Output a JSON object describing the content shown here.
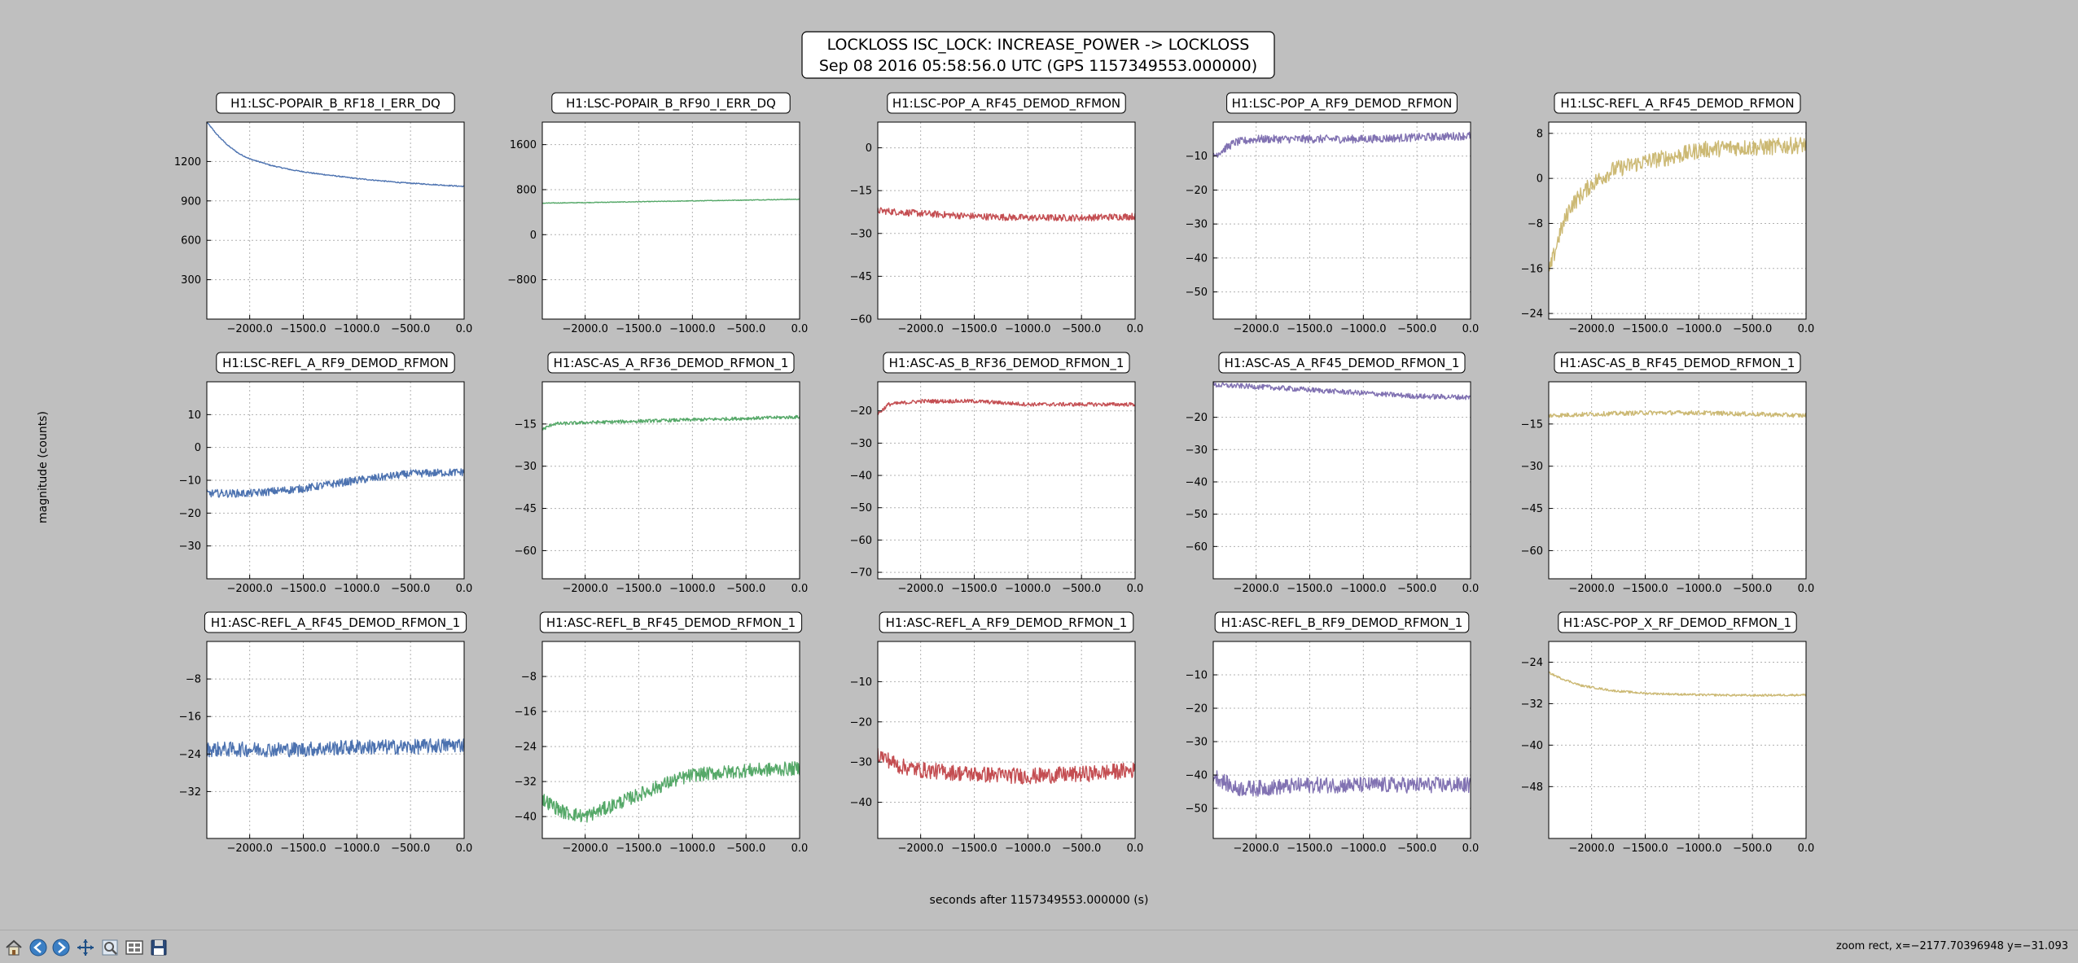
{
  "figure": {
    "title_line1": "LOCKLOSS ISC_LOCK: INCREASE_POWER -> LOCKLOSS",
    "title_line2": "Sep 08 2016 05:58:56.0 UTC (GPS 1157349553.000000)",
    "xlabel": "seconds after 1157349553.000000 (s)",
    "ylabel": "magnitude (counts)"
  },
  "toolbar": {
    "buttons": [
      {
        "name": "home-button",
        "icon": "home-icon"
      },
      {
        "name": "back-button",
        "icon": "back-arrow-icon"
      },
      {
        "name": "forward-button",
        "icon": "forward-arrow-icon"
      },
      {
        "name": "pan-button",
        "icon": "pan-icon"
      },
      {
        "name": "zoom-button",
        "icon": "zoom-icon"
      },
      {
        "name": "configure-subplots-button",
        "icon": "subplots-icon"
      },
      {
        "name": "save-button",
        "icon": "save-icon"
      }
    ],
    "status": "zoom rect, x=−2177.70396948 y=−31.093"
  },
  "colors": {
    "blue": "#4c72b0",
    "green": "#55a868",
    "red": "#c44e52",
    "purple": "#8172b2",
    "gold": "#ccb974",
    "background": "#bfbfbf"
  },
  "chart_data": [
    {
      "type": "line",
      "title": "H1:LSC-POPAIR_B_RF18_I_ERR_DQ",
      "color": "#4c72b0",
      "xlim": [
        -2400,
        0
      ],
      "ylim": [
        0,
        1500
      ],
      "xticks": [
        -2000,
        -1500,
        -1000,
        -500,
        0
      ],
      "xtick_labels": [
        "−2000.0",
        "−1500.0",
        "−1000.0",
        "−500.0",
        "0.0"
      ],
      "yticks": [
        300,
        600,
        900,
        1200
      ],
      "ytick_labels": [
        "300",
        "600",
        "900",
        "1200"
      ],
      "grid": true,
      "x": [
        -2400,
        -2300,
        -2200,
        -2100,
        -2000,
        -1800,
        -1600,
        -1400,
        -1200,
        -1000,
        -800,
        -600,
        -400,
        -200,
        0
      ],
      "y": [
        1500,
        1400,
        1320,
        1260,
        1220,
        1170,
        1135,
        1110,
        1090,
        1070,
        1055,
        1040,
        1030,
        1020,
        1010
      ],
      "noise": 4
    },
    {
      "type": "line",
      "title": "H1:LSC-POPAIR_B_RF90_I_ERR_DQ",
      "color": "#55a868",
      "xlim": [
        -2400,
        0
      ],
      "ylim": [
        -1500,
        2000
      ],
      "xticks": [
        -2000,
        -1500,
        -1000,
        -500,
        0
      ],
      "xtick_labels": [
        "−2000.0",
        "−1500.0",
        "−1000.0",
        "−500.0",
        "0.0"
      ],
      "yticks": [
        -800,
        0,
        800,
        1600
      ],
      "ytick_labels": [
        "−800",
        "0",
        "800",
        "1600"
      ],
      "grid": true,
      "x": [
        -2400,
        -2000,
        -1500,
        -1000,
        -500,
        0
      ],
      "y": [
        560,
        570,
        585,
        600,
        615,
        630
      ],
      "noise": 6
    },
    {
      "type": "line",
      "title": "H1:LSC-POP_A_RF45_DEMOD_RFMON",
      "color": "#c44e52",
      "xlim": [
        -2400,
        0
      ],
      "ylim": [
        -60,
        9
      ],
      "xticks": [
        -2000,
        -1500,
        -1000,
        -500,
        0
      ],
      "xtick_labels": [
        "−2000.0",
        "−1500.0",
        "−1000.0",
        "−500.0",
        "0.0"
      ],
      "yticks": [
        -60,
        -45,
        -30,
        -15,
        0
      ],
      "ytick_labels": [
        "−60",
        "−45",
        "−30",
        "−15",
        "0"
      ],
      "grid": true,
      "x": [
        -2400,
        -2000,
        -1500,
        -1000,
        -500,
        0
      ],
      "y": [
        -22,
        -23,
        -24,
        -24.5,
        -24.5,
        -24
      ],
      "noise": 1.2
    },
    {
      "type": "line",
      "title": "H1:LSC-POP_A_RF9_DEMOD_RFMON",
      "color": "#8172b2",
      "xlim": [
        -2400,
        0
      ],
      "ylim": [
        -58,
        0
      ],
      "xticks": [
        -2000,
        -1500,
        -1000,
        -500,
        0
      ],
      "xtick_labels": [
        "−2000.0",
        "−1500.0",
        "−1000.0",
        "−500.0",
        "0.0"
      ],
      "yticks": [
        -50,
        -40,
        -30,
        -20,
        -10
      ],
      "ytick_labels": [
        "−50",
        "−40",
        "−30",
        "−20",
        "−10"
      ],
      "grid": true,
      "x": [
        -2400,
        -2200,
        -2000,
        -1500,
        -1000,
        -500,
        0
      ],
      "y": [
        -10,
        -6,
        -5,
        -5,
        -5,
        -4.5,
        -4
      ],
      "noise": 1.2
    },
    {
      "type": "line",
      "title": "H1:LSC-REFL_A_RF45_DEMOD_RFMON",
      "color": "#ccb974",
      "xlim": [
        -2400,
        0
      ],
      "ylim": [
        -25,
        10
      ],
      "xticks": [
        -2000,
        -1500,
        -1000,
        -500,
        0
      ],
      "xtick_labels": [
        "−2000.0",
        "−1500.0",
        "−1000.0",
        "−500.0",
        "0.0"
      ],
      "yticks": [
        -24,
        -16,
        -8,
        0,
        8
      ],
      "ytick_labels": [
        "−24",
        "−16",
        "−8",
        "0",
        "8"
      ],
      "grid": true,
      "x": [
        -2400,
        -2300,
        -2200,
        -2000,
        -1800,
        -1500,
        -1200,
        -1000,
        -700,
        -400,
        0
      ],
      "y": [
        -17,
        -10,
        -5,
        -1,
        1.5,
        3,
        4,
        5,
        5.5,
        5.5,
        6
      ],
      "noise": 1.5
    },
    {
      "type": "line",
      "title": "H1:LSC-REFL_A_RF9_DEMOD_RFMON",
      "color": "#4c72b0",
      "xlim": [
        -2400,
        0
      ],
      "ylim": [
        -40,
        20
      ],
      "xticks": [
        -2000,
        -1500,
        -1000,
        -500,
        0
      ],
      "xtick_labels": [
        "−2000.0",
        "−1500.0",
        "−1000.0",
        "−500.0",
        "0.0"
      ],
      "yticks": [
        -30,
        -20,
        -10,
        0,
        10
      ],
      "ytick_labels": [
        "−30",
        "−20",
        "−10",
        "0",
        "10"
      ],
      "grid": true,
      "x": [
        -2400,
        -2000,
        -1500,
        -1000,
        -500,
        0
      ],
      "y": [
        -14,
        -14,
        -12.5,
        -10,
        -8,
        -7.5
      ],
      "noise": 1.2
    },
    {
      "type": "line",
      "title": "H1:ASC-AS_A_RF36_DEMOD_RFMON_1",
      "color": "#55a868",
      "xlim": [
        -2400,
        0
      ],
      "ylim": [
        -70,
        0
      ],
      "xticks": [
        -2000,
        -1500,
        -1000,
        -500,
        0
      ],
      "xtick_labels": [
        "−2000.0",
        "−1500.0",
        "−1000.0",
        "−500.0",
        "0.0"
      ],
      "yticks": [
        -60,
        -45,
        -30,
        -15
      ],
      "ytick_labels": [
        "−60",
        "−45",
        "−30",
        "−15"
      ],
      "grid": true,
      "x": [
        -2400,
        -2300,
        -2000,
        -1500,
        -1000,
        -500,
        0
      ],
      "y": [
        -17,
        -15,
        -14.5,
        -14,
        -13.5,
        -13,
        -12.5
      ],
      "noise": 0.6
    },
    {
      "type": "line",
      "title": "H1:ASC-AS_B_RF36_DEMOD_RFMON_1",
      "color": "#c44e52",
      "xlim": [
        -2400,
        0
      ],
      "ylim": [
        -72,
        -11
      ],
      "xticks": [
        -2000,
        -1500,
        -1000,
        -500,
        0
      ],
      "xtick_labels": [
        "−2000.0",
        "−1500.0",
        "−1000.0",
        "−500.0",
        "0.0"
      ],
      "yticks": [
        -70,
        -60,
        -50,
        -40,
        -30,
        -20
      ],
      "ytick_labels": [
        "−70",
        "−60",
        "−50",
        "−40",
        "−30",
        "−20"
      ],
      "grid": true,
      "x": [
        -2400,
        -2300,
        -2000,
        -1500,
        -1000,
        -500,
        0
      ],
      "y": [
        -21,
        -18,
        -17,
        -17,
        -18,
        -18,
        -18
      ],
      "noise": 0.6
    },
    {
      "type": "line",
      "title": "H1:ASC-AS_A_RF45_DEMOD_RFMON_1",
      "color": "#8172b2",
      "xlim": [
        -2400,
        0
      ],
      "ylim": [
        -70,
        -9
      ],
      "xticks": [
        -2000,
        -1500,
        -1000,
        -500,
        0
      ],
      "xtick_labels": [
        "−2000.0",
        "−1500.0",
        "−1000.0",
        "−500.0",
        "0.0"
      ],
      "yticks": [
        -60,
        -50,
        -40,
        -30,
        -20
      ],
      "ytick_labels": [
        "−60",
        "−50",
        "−40",
        "−30",
        "−20"
      ],
      "grid": true,
      "x": [
        -2400,
        -2000,
        -1500,
        -1000,
        -500,
        0
      ],
      "y": [
        -10,
        -10.5,
        -11.5,
        -12.5,
        -13.5,
        -13.8
      ],
      "noise": 0.8
    },
    {
      "type": "line",
      "title": "H1:ASC-AS_B_RF45_DEMOD_RFMON_1",
      "color": "#ccb974",
      "xlim": [
        -2400,
        0
      ],
      "ylim": [
        -70,
        0
      ],
      "xticks": [
        -2000,
        -1500,
        -1000,
        -500,
        0
      ],
      "xtick_labels": [
        "−2000.0",
        "−1500.0",
        "−1000.0",
        "−500.0",
        "0.0"
      ],
      "yticks": [
        -60,
        -45,
        -30,
        -15
      ],
      "ytick_labels": [
        "−60",
        "−45",
        "−30",
        "−15"
      ],
      "grid": true,
      "x": [
        -2400,
        -2000,
        -1500,
        -1000,
        -500,
        0
      ],
      "y": [
        -12,
        -11.5,
        -11,
        -11,
        -11.5,
        -12
      ],
      "noise": 0.8
    },
    {
      "type": "line",
      "title": "H1:ASC-REFL_A_RF45_DEMOD_RFMON_1",
      "color": "#4c72b0",
      "xlim": [
        -2400,
        0
      ],
      "ylim": [
        -42,
        0
      ],
      "xticks": [
        -2000,
        -1500,
        -1000,
        -500,
        0
      ],
      "xtick_labels": [
        "−2000.0",
        "−1500.0",
        "−1000.0",
        "−500.0",
        "0.0"
      ],
      "yticks": [
        -32,
        -24,
        -16,
        -8
      ],
      "ytick_labels": [
        "−32",
        "−24",
        "−16",
        "−8"
      ],
      "grid": true,
      "x": [
        -2400,
        -1500,
        -1000,
        -500,
        0
      ],
      "y": [
        -23,
        -23,
        -22.5,
        -22.5,
        -22
      ],
      "noise": 1.6
    },
    {
      "type": "line",
      "title": "H1:ASC-REFL_B_RF45_DEMOD_RFMON_1",
      "color": "#55a868",
      "xlim": [
        -2400,
        0
      ],
      "ylim": [
        -45,
        0
      ],
      "xticks": [
        -2000,
        -1500,
        -1000,
        -500,
        0
      ],
      "xtick_labels": [
        "−2000.0",
        "−1500.0",
        "−1000.0",
        "−500.0",
        "0.0"
      ],
      "yticks": [
        -40,
        -32,
        -24,
        -16,
        -8
      ],
      "ytick_labels": [
        "−40",
        "−32",
        "−24",
        "−16",
        "−8"
      ],
      "grid": true,
      "x": [
        -2400,
        -2200,
        -2000,
        -1800,
        -1500,
        -1200,
        -1000,
        -500,
        0
      ],
      "y": [
        -36,
        -39,
        -40,
        -38,
        -35,
        -32,
        -30.5,
        -29.5,
        -29
      ],
      "noise": 1.6
    },
    {
      "type": "line",
      "title": "H1:ASC-REFL_A_RF9_DEMOD_RFMON_1",
      "color": "#c44e52",
      "xlim": [
        -2400,
        0
      ],
      "ylim": [
        -49,
        0
      ],
      "xticks": [
        -2000,
        -1500,
        -1000,
        -500,
        0
      ],
      "xtick_labels": [
        "−2000.0",
        "−1500.0",
        "−1000.0",
        "−500.0",
        "0.0"
      ],
      "yticks": [
        -40,
        -30,
        -20,
        -10
      ],
      "ytick_labels": [
        "−40",
        "−30",
        "−20",
        "−10"
      ],
      "grid": true,
      "x": [
        -2400,
        -2200,
        -2000,
        -1500,
        -1000,
        -500,
        0
      ],
      "y": [
        -28,
        -31,
        -32,
        -33,
        -33.5,
        -33,
        -32
      ],
      "noise": 2.0
    },
    {
      "type": "line",
      "title": "H1:ASC-REFL_B_RF9_DEMOD_RFMON_1",
      "color": "#8172b2",
      "xlim": [
        -2400,
        0
      ],
      "ylim": [
        -59,
        0
      ],
      "xticks": [
        -2000,
        -1500,
        -1000,
        -500,
        0
      ],
      "xtick_labels": [
        "−2000.0",
        "−1500.0",
        "−1000.0",
        "−500.0",
        "0.0"
      ],
      "yticks": [
        -50,
        -40,
        -30,
        -20,
        -10
      ],
      "ytick_labels": [
        "−50",
        "−40",
        "−30",
        "−20",
        "−10"
      ],
      "grid": true,
      "x": [
        -2400,
        -2200,
        -2000,
        -1500,
        -1000,
        -500,
        0
      ],
      "y": [
        -40,
        -44,
        -44,
        -43,
        -43,
        -43,
        -43
      ],
      "noise": 2.4
    },
    {
      "type": "line",
      "title": "H1:ASC-POP_X_RF_DEMOD_RFMON_1",
      "color": "#ccb974",
      "xlim": [
        -2400,
        0
      ],
      "ylim": [
        -58,
        -20
      ],
      "xticks": [
        -2000,
        -1500,
        -1000,
        -500,
        0
      ],
      "xtick_labels": [
        "−2000.0",
        "−1500.0",
        "−1000.0",
        "−500.0",
        "0.0"
      ],
      "yticks": [
        -48,
        -40,
        -32,
        -24
      ],
      "ytick_labels": [
        "−48",
        "−40",
        "−32",
        "−24"
      ],
      "grid": true,
      "x": [
        -2400,
        -2300,
        -2100,
        -1800,
        -1500,
        -1000,
        -500,
        0
      ],
      "y": [
        -26,
        -27,
        -28.5,
        -29.5,
        -30,
        -30.3,
        -30.4,
        -30.3
      ],
      "noise": 0.2
    }
  ]
}
